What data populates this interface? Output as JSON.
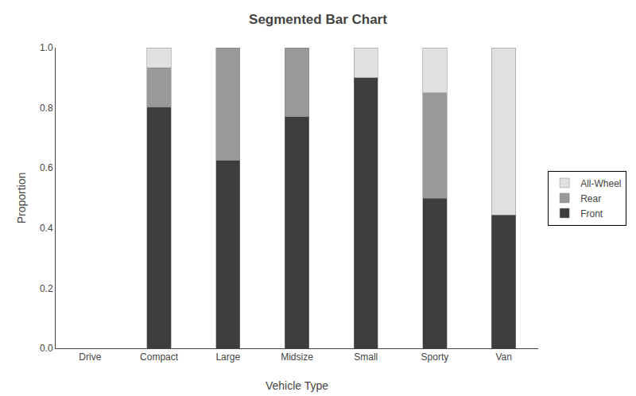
{
  "chart_data": {
    "type": "bar",
    "stacked": true,
    "title": "Segmented Bar Chart",
    "xlabel": "Vehicle Type",
    "ylabel": "Proportion",
    "categories": [
      "Drive",
      "Compact",
      "Large",
      "Midsize",
      "Small",
      "Sporty",
      "Van"
    ],
    "series": [
      {
        "name": "Front",
        "color": "#3d3d3d",
        "values": [
          0.0,
          0.802,
          0.625,
          0.77,
          0.9,
          0.5,
          0.444
        ]
      },
      {
        "name": "Rear",
        "color": "#999999",
        "values": [
          0.0,
          0.131,
          0.375,
          0.23,
          0.0,
          0.35,
          0.0
        ]
      },
      {
        "name": "All-Wheel",
        "color": "#e0e0e0",
        "values": [
          0.0,
          0.067,
          0.0,
          0.0,
          0.1,
          0.15,
          0.556
        ]
      }
    ],
    "ylim": [
      0.0,
      1.0
    ],
    "yticks": [
      {
        "value": 0.0,
        "label": "0.0"
      },
      0.2,
      0.4,
      0.6,
      0.8,
      {
        "value": 1.0,
        "label": "1.0"
      }
    ],
    "grid": false,
    "legend": "right"
  }
}
